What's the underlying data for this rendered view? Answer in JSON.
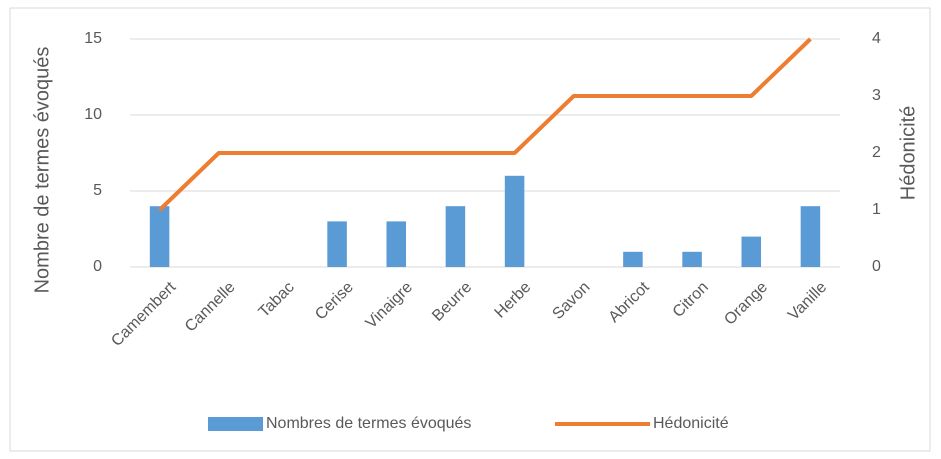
{
  "chart_data": {
    "type": "bar",
    "categories": [
      "Camembert",
      "Cannelle",
      "Tabac",
      "Cerise",
      "Vinaigre",
      "Beurre",
      "Herbe",
      "Savon",
      "Abricot",
      "Citron",
      "Orange",
      "Vanille"
    ],
    "series": [
      {
        "name": "Nombres de termes évoqués",
        "type": "bar",
        "color": "#5b9bd5",
        "values": [
          4,
          0,
          0,
          3,
          3,
          4,
          6,
          0,
          1,
          1,
          2,
          4
        ]
      },
      {
        "name": "Hédonicité",
        "type": "line",
        "axis": "y2",
        "color": "#ed7d31",
        "values": [
          1,
          2,
          2,
          2,
          2,
          2,
          2,
          3,
          3,
          3,
          3,
          4
        ]
      }
    ],
    "ylabel": "Nombre de termes évoqués",
    "y2label": "Hédonicité",
    "ylim": [
      0,
      15
    ],
    "yticks": [
      0,
      5,
      10,
      15
    ],
    "y2lim": [
      0,
      4
    ],
    "y2ticks": [
      0,
      1,
      2,
      3,
      4
    ],
    "grid": true,
    "legend": "bottom"
  }
}
